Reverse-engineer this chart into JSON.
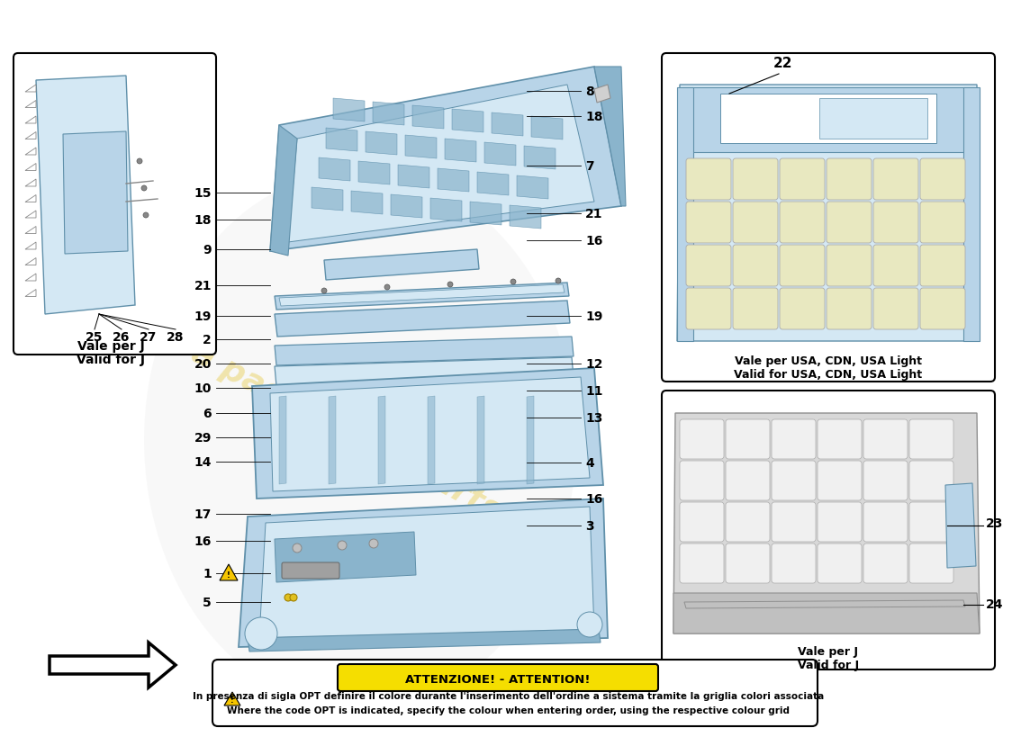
{
  "bg_color": "#ffffff",
  "part_color_blue": "#b8d4e8",
  "part_color_blue_dark": "#8ab4cc",
  "part_color_blue_light": "#d4e8f4",
  "part_color_gray": "#d0d0d0",
  "part_color_gray_dark": "#b0b0b0",
  "part_color_cream": "#e8e8c0",
  "watermark_text": "a passion for parts.jimdo",
  "watermark_color": "#e8d060",
  "attention_title": "ATTENZIONE! - ATTENTION!",
  "attention_text1": "In presenza di sigla OPT definire il colore durante l'inserimento dell'ordine a sistema tramite la griglia colori associata",
  "attention_text2": "Where the code OPT is indicated, specify the colour when entering order, using the respective colour grid",
  "left_box_label1": "Vale per J",
  "left_box_label2": "Valid for J",
  "left_box_numbers": [
    "25",
    "26",
    "27",
    "28"
  ],
  "right_upper_box_label1": "Vale per USA, CDN, USA Light",
  "right_upper_box_label2": "Valid for USA, CDN, USA Light",
  "right_upper_box_num": "22",
  "right_lower_box_label1": "Vale per J",
  "right_lower_box_label2": "Valid for J",
  "right_lower_box_num1": "23",
  "right_lower_box_num2": "24",
  "left_part_numbers": [
    [
      "15",
      230,
      205
    ],
    [
      "18",
      230,
      235
    ],
    [
      "9",
      230,
      268
    ],
    [
      "21",
      230,
      308
    ],
    [
      "19",
      230,
      342
    ],
    [
      "2",
      230,
      368
    ],
    [
      "20",
      230,
      395
    ],
    [
      "10",
      230,
      422
    ],
    [
      "6",
      230,
      450
    ],
    [
      "29",
      230,
      477
    ],
    [
      "14",
      230,
      504
    ],
    [
      "17",
      230,
      562
    ],
    [
      "16",
      230,
      592
    ],
    [
      "1",
      230,
      628
    ],
    [
      "5",
      230,
      660
    ]
  ],
  "right_part_numbers": [
    [
      "8",
      635,
      92
    ],
    [
      "18",
      635,
      120
    ],
    [
      "7",
      635,
      175
    ],
    [
      "21",
      635,
      228
    ],
    [
      "16",
      635,
      258
    ],
    [
      "19",
      635,
      342
    ],
    [
      "12",
      635,
      395
    ],
    [
      "11",
      635,
      425
    ],
    [
      "13",
      635,
      455
    ],
    [
      "4",
      635,
      505
    ],
    [
      "16",
      635,
      545
    ],
    [
      "3",
      635,
      575
    ]
  ],
  "num_fontsize": 10,
  "label_fontsize": 9
}
